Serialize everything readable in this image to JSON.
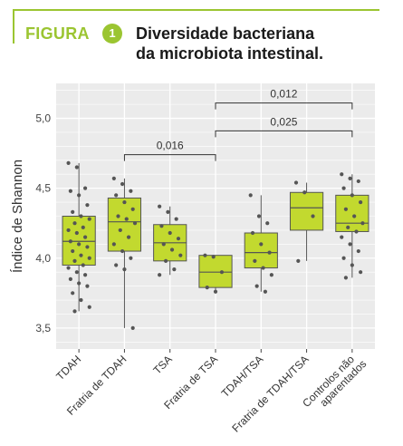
{
  "header": {
    "figure_word": "FIGURA",
    "figure_number": "1",
    "title_line1": "Diversidade bacteriana",
    "title_line2": "da microbiota intestinal.",
    "accent_color": "#9bc531"
  },
  "chart_data": {
    "type": "box",
    "title": "",
    "ylabel": "Índice de Shannon",
    "xlabel": "",
    "ylim": [
      3.35,
      5.25
    ],
    "yticks": [
      3.5,
      4.0,
      4.5,
      5.0
    ],
    "ytick_labels": [
      "3,5",
      "4,0",
      "4,5",
      "5,0"
    ],
    "grid": true,
    "box_color": "#c2d92f",
    "categories": [
      "TDAH",
      "Fratria de TDAH",
      "TSA",
      "Fratria de TSA",
      "TDAH/TSA",
      "Fratria de TDAH/TSA",
      "Controlos não aparentados"
    ],
    "boxes": [
      {
        "q1": 3.95,
        "median": 4.12,
        "q3": 4.3,
        "whisker_low": 3.62,
        "whisker_high": 4.68
      },
      {
        "q1": 4.05,
        "median": 4.26,
        "q3": 4.43,
        "whisker_low": 3.5,
        "whisker_high": 4.57
      },
      {
        "q1": 3.98,
        "median": 4.11,
        "q3": 4.24,
        "whisker_low": 3.88,
        "whisker_high": 4.37
      },
      {
        "q1": 3.79,
        "median": 3.9,
        "q3": 4.02,
        "whisker_low": 3.76,
        "whisker_high": 4.02
      },
      {
        "q1": 3.93,
        "median": 4.04,
        "q3": 4.18,
        "whisker_low": 3.76,
        "whisker_high": 4.45
      },
      {
        "q1": 4.2,
        "median": 4.36,
        "q3": 4.47,
        "whisker_low": 3.98,
        "whisker_high": 4.54
      },
      {
        "q1": 4.19,
        "median": 4.25,
        "q3": 4.45,
        "whisker_low": 3.86,
        "whisker_high": 4.6
      }
    ],
    "points": [
      [
        4.68,
        4.65,
        4.5,
        4.48,
        4.45,
        4.38,
        4.33,
        4.3,
        4.28,
        4.25,
        4.22,
        4.2,
        4.18,
        4.15,
        4.12,
        4.1,
        4.08,
        4.05,
        4.02,
        4.0,
        3.98,
        3.95,
        3.93,
        3.9,
        3.88,
        3.85,
        3.82,
        3.8,
        3.75,
        3.7,
        3.65,
        3.62
      ],
      [
        4.57,
        4.53,
        4.48,
        4.45,
        4.4,
        4.35,
        4.3,
        4.28,
        4.25,
        4.2,
        4.15,
        4.1,
        4.05,
        4.0,
        3.95,
        3.92,
        3.5
      ],
      [
        4.37,
        4.33,
        4.28,
        4.23,
        4.18,
        4.14,
        4.1,
        4.06,
        4.02,
        3.98,
        3.92,
        3.88
      ],
      [
        4.02,
        4.01,
        3.9,
        3.79,
        3.76
      ],
      [
        4.45,
        4.3,
        4.25,
        4.18,
        4.1,
        4.04,
        3.98,
        3.93,
        3.88,
        3.8,
        3.76
      ],
      [
        4.54,
        4.47,
        4.3,
        3.98
      ],
      [
        4.6,
        4.57,
        4.55,
        4.5,
        4.45,
        4.4,
        4.35,
        4.3,
        4.25,
        4.22,
        4.19,
        4.15,
        4.1,
        4.05,
        4.0,
        3.95,
        3.9,
        3.86
      ]
    ],
    "comparisons": [
      {
        "from": 1,
        "to": 3,
        "label": "0,016"
      },
      {
        "from": 3,
        "to": 6,
        "label": "0,025"
      },
      {
        "from": 3,
        "to": 6,
        "label": "0,012"
      }
    ]
  }
}
